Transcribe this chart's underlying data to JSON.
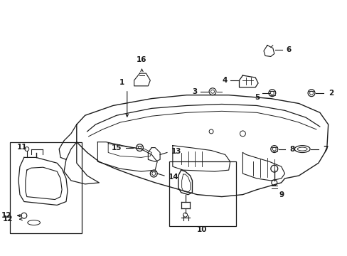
{
  "background_color": "#ffffff",
  "figsize": [
    4.89,
    3.6
  ],
  "dpi": 100,
  "line_color": "#1a1a1a",
  "font_size": 7.5,
  "font_weight": "bold"
}
